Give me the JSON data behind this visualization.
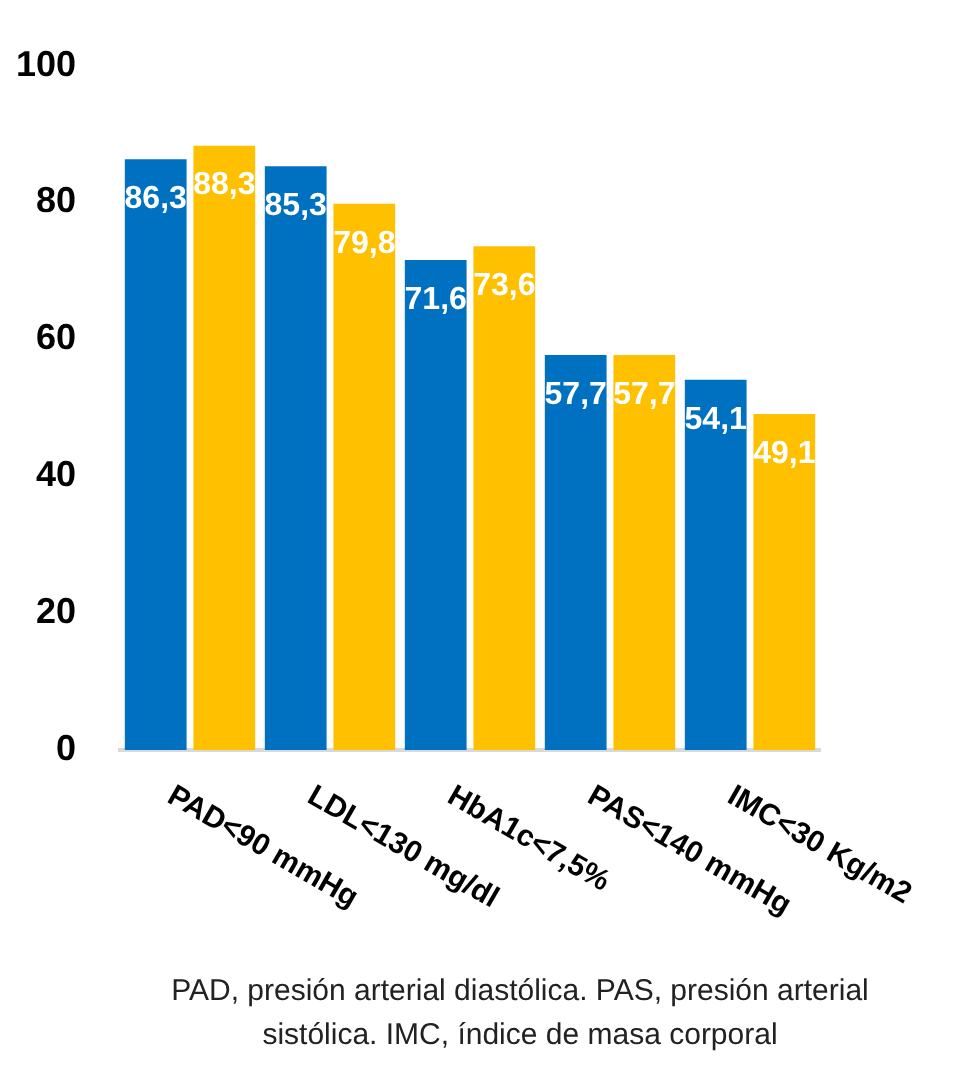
{
  "chart_data": {
    "type": "bar",
    "categories": [
      "PAD<90 mmHg",
      "LDL<130 mg/dl",
      "HbA1c<7,5%",
      "PAS<140 mmHg",
      "IMC<30 Kg/m2"
    ],
    "series": [
      {
        "color": "#0070c0",
        "values": [
          86.3,
          85.3,
          71.6,
          57.7,
          54.1
        ],
        "value_labels": [
          "86,3",
          "85,3",
          "71,6",
          "57,7",
          "54,1"
        ]
      },
      {
        "color": "#ffc000",
        "values": [
          88.3,
          79.8,
          73.6,
          57.7,
          49.1
        ],
        "value_labels": [
          "88,3",
          "79,8",
          "73,6",
          "57,7",
          "49,1"
        ]
      }
    ],
    "ylim": [
      0,
      100
    ],
    "yticks": [
      0,
      20,
      40,
      60,
      80,
      100
    ],
    "grid": false,
    "legend": false,
    "annotations": [
      "PAD, presión arterial diastólica. PAS, presión arterial sistólica. IMC, índice de masa corporal"
    ]
  }
}
